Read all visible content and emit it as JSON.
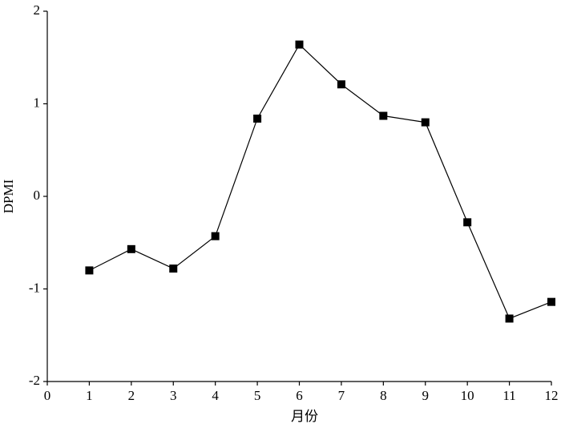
{
  "chart_data": {
    "type": "line",
    "x_label": "月份",
    "y_label": "DPMI",
    "x": [
      1,
      2,
      3,
      4,
      5,
      6,
      7,
      8,
      9,
      10,
      11,
      12
    ],
    "series": [
      {
        "color": "#000000",
        "values": [
          -0.8,
          -0.57,
          -0.78,
          -0.43,
          0.84,
          1.64,
          1.21,
          0.87,
          0.8,
          -0.28,
          -1.32,
          -1.14
        ]
      }
    ],
    "xlim": [
      0,
      12
    ],
    "xticks": [
      0,
      1,
      2,
      3,
      4,
      5,
      6,
      7,
      8,
      9,
      10,
      11,
      12
    ],
    "ylim": [
      -2,
      2
    ],
    "yticks": [
      -2,
      -1,
      0,
      1,
      2
    ],
    "grid": false
  }
}
